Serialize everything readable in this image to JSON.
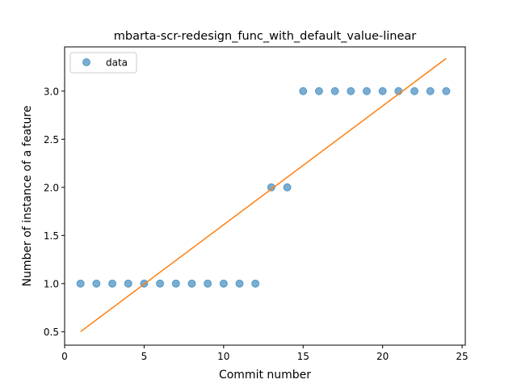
{
  "chart_data": {
    "type": "scatter",
    "title": "mbarta-scr-redesign_func_with_default_value-linear",
    "xlabel": "Commit number",
    "ylabel": "Number of instance of a feature",
    "xlim": [
      0,
      25.2
    ],
    "ylim": [
      0.36,
      3.46
    ],
    "xticks": [
      0,
      5,
      10,
      15,
      20,
      25
    ],
    "yticks": [
      0.5,
      1.0,
      1.5,
      2.0,
      2.5,
      3.0
    ],
    "xtick_labels": [
      "0",
      "5",
      "10",
      "15",
      "20",
      "25"
    ],
    "ytick_labels": [
      "0.5",
      "1.0",
      "1.5",
      "2.0",
      "2.5",
      "3.0"
    ],
    "grid": false,
    "legend_position": "top-left",
    "series": [
      {
        "name": "data",
        "kind": "points",
        "color": "#1f77b4",
        "x": [
          1,
          2,
          3,
          4,
          5,
          6,
          7,
          8,
          9,
          10,
          11,
          12,
          13,
          14,
          15,
          16,
          17,
          18,
          19,
          20,
          21,
          22,
          23,
          24
        ],
        "y": [
          1,
          1,
          1,
          1,
          1,
          1,
          1,
          1,
          1,
          1,
          1,
          1,
          2,
          2,
          3,
          3,
          3,
          3,
          3,
          3,
          3,
          3,
          3,
          3
        ]
      },
      {
        "kind": "line",
        "color": "#ff7f0e",
        "x": [
          1,
          24
        ],
        "y": [
          0.5,
          3.34
        ]
      }
    ]
  }
}
